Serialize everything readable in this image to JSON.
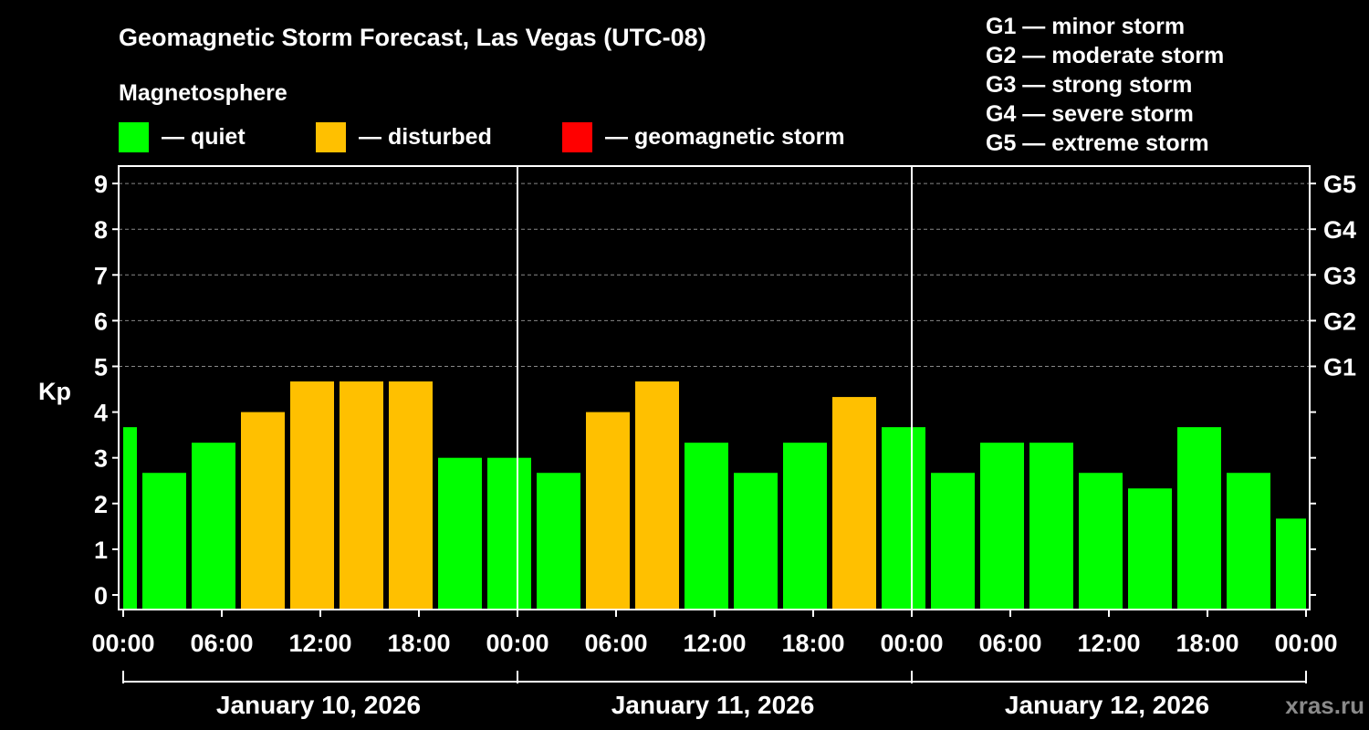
{
  "chart_data": {
    "type": "bar",
    "title": "Geomagnetic Storm Forecast, Las Vegas (UTC-08)",
    "subtitle": "Magnetosphere",
    "ylabel": "Kp",
    "ylim": [
      0,
      9
    ],
    "yticks": [
      "0",
      "1",
      "2",
      "3",
      "4",
      "5",
      "6",
      "7",
      "8",
      "9"
    ],
    "right_ticks": [
      {
        "kp": 5,
        "label": "G1"
      },
      {
        "kp": 6,
        "label": "G2"
      },
      {
        "kp": 7,
        "label": "G3"
      },
      {
        "kp": 8,
        "label": "G4"
      },
      {
        "kp": 9,
        "label": "G5"
      }
    ],
    "grid": "dashed horizontal at Kp 5-9",
    "xlim_hours": [
      0,
      72
    ],
    "xtick_labels": [
      "00:00",
      "06:00",
      "12:00",
      "18:00",
      "00:00",
      "06:00",
      "12:00",
      "18:00",
      "00:00",
      "06:00",
      "12:00",
      "18:00",
      "00:00"
    ],
    "days": [
      "January 10, 2026",
      "January 11, 2026",
      "January 12, 2026"
    ],
    "bin_hours": 3,
    "first_bin_start_hour": -2,
    "values": [
      3.67,
      2.67,
      3.33,
      4.0,
      4.67,
      4.67,
      4.67,
      3.0,
      3.0,
      2.67,
      4.0,
      4.67,
      3.33,
      2.67,
      3.33,
      4.33,
      3.67,
      2.67,
      3.33,
      3.33,
      2.67,
      2.33,
      3.67,
      2.67,
      1.67
    ],
    "legend": [
      {
        "label": "— quiet",
        "color": "#00ff00"
      },
      {
        "label": "— disturbed",
        "color": "#ffc000"
      },
      {
        "label": "— geomagnetic storm",
        "color": "#ff0000"
      }
    ],
    "storm_scale": [
      "G1 — minor storm",
      "G2 — moderate storm",
      "G3 — strong storm",
      "G4 — severe storm",
      "G5 — extreme storm"
    ]
  },
  "watermark": "xras.ru"
}
